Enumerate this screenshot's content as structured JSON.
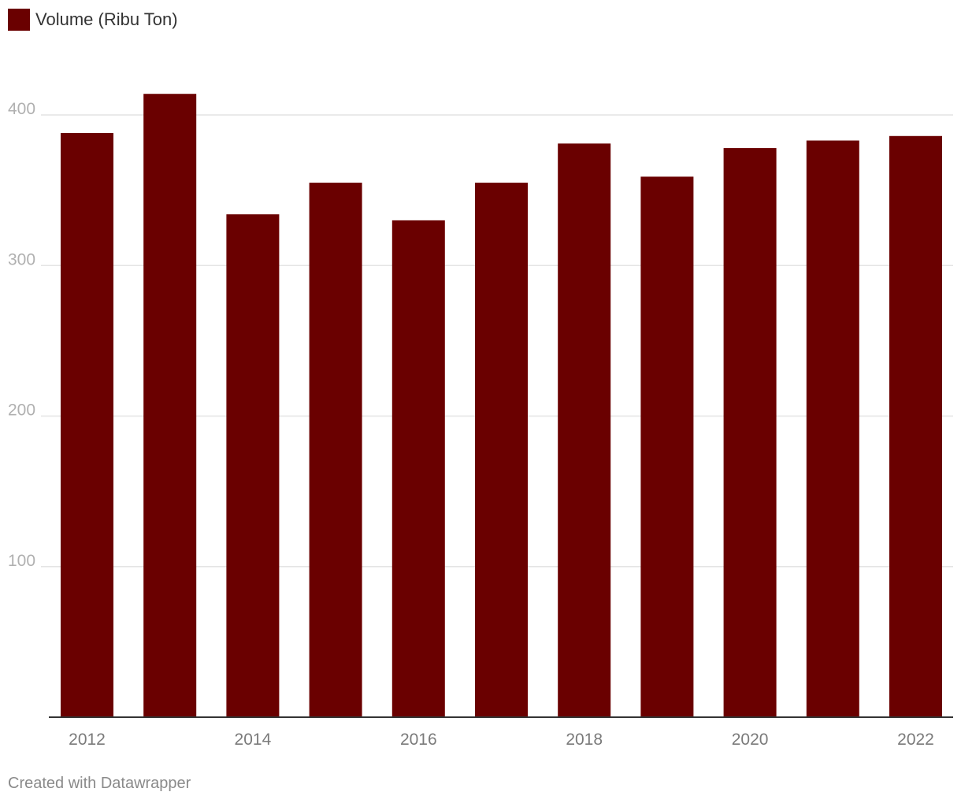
{
  "legend": {
    "label": "Volume (Ribu Ton)"
  },
  "footer": {
    "credit": "Created with Datawrapper"
  },
  "colors": {
    "bar": "#6a0000",
    "grid": "#e4e4e4",
    "axis": "#333333",
    "y_tick_text": "#b0b0b0",
    "x_tick_text": "#7a7a7a"
  },
  "chart_data": {
    "type": "bar",
    "categories": [
      "2012",
      "2013",
      "2014",
      "2015",
      "2016",
      "2017",
      "2018",
      "2019",
      "2020",
      "2021",
      "2022"
    ],
    "series": [
      {
        "name": "Volume (Ribu Ton)",
        "values": [
          388,
          414,
          334,
          355,
          330,
          355,
          381,
          359,
          378,
          383,
          386
        ]
      }
    ],
    "x_tick_labels": [
      "2012",
      "2014",
      "2016",
      "2018",
      "2020",
      "2022"
    ],
    "y_ticks": [
      100,
      200,
      300,
      400
    ],
    "ylim": [
      0,
      400
    ],
    "grid": true,
    "legend_position": "top-left"
  }
}
